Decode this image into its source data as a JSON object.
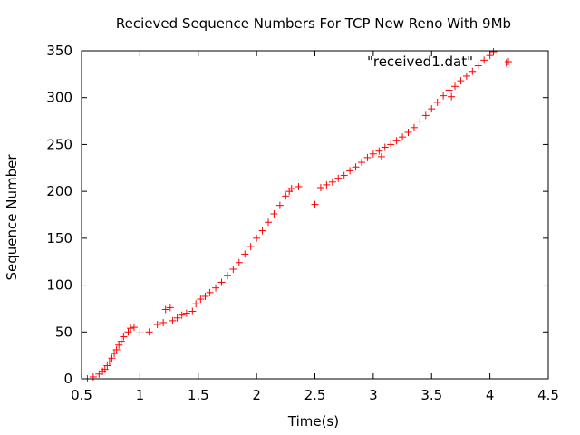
{
  "chart_data": {
    "type": "scatter",
    "title": "Recieved Sequence Numbers For TCP New Reno With 9Mb",
    "xlabel": "Time(s)",
    "ylabel": "Sequence Number",
    "xlim": [
      0.5,
      4.5
    ],
    "ylim": [
      0,
      350
    ],
    "xticks": [
      0.5,
      1,
      1.5,
      2,
      2.5,
      3,
      3.5,
      4,
      4.5
    ],
    "xtick_labels": [
      "0.5",
      "1",
      "1.5",
      "2",
      "2.5",
      "3",
      "3.5",
      "4",
      "4.5"
    ],
    "yticks": [
      0,
      50,
      100,
      150,
      200,
      250,
      300,
      350
    ],
    "ytick_labels": [
      "0",
      "50",
      "100",
      "150",
      "200",
      "250",
      "300",
      "350"
    ],
    "marker": "+",
    "marker_color": "#ff0000",
    "legend": {
      "position": "top-right"
    },
    "series": [
      {
        "name": "\"received1.dat\"",
        "points": [
          [
            0.55,
            0
          ],
          [
            0.6,
            2
          ],
          [
            0.65,
            5
          ],
          [
            0.68,
            8
          ],
          [
            0.7,
            10
          ],
          [
            0.72,
            14
          ],
          [
            0.74,
            18
          ],
          [
            0.76,
            22
          ],
          [
            0.78,
            27
          ],
          [
            0.8,
            31
          ],
          [
            0.82,
            36
          ],
          [
            0.84,
            40
          ],
          [
            0.86,
            45
          ],
          [
            0.9,
            50
          ],
          [
            0.92,
            54
          ],
          [
            0.95,
            55
          ],
          [
            1.0,
            49
          ],
          [
            1.08,
            50
          ],
          [
            1.15,
            58
          ],
          [
            1.2,
            60
          ],
          [
            1.22,
            74
          ],
          [
            1.26,
            76
          ],
          [
            1.28,
            62
          ],
          [
            1.32,
            65
          ],
          [
            1.36,
            68
          ],
          [
            1.4,
            70
          ],
          [
            1.45,
            72
          ],
          [
            1.48,
            80
          ],
          [
            1.52,
            85
          ],
          [
            1.56,
            88
          ],
          [
            1.6,
            92
          ],
          [
            1.65,
            97
          ],
          [
            1.7,
            103
          ],
          [
            1.75,
            110
          ],
          [
            1.8,
            117
          ],
          [
            1.85,
            124
          ],
          [
            1.9,
            133
          ],
          [
            1.95,
            141
          ],
          [
            2.0,
            150
          ],
          [
            2.05,
            158
          ],
          [
            2.1,
            167
          ],
          [
            2.15,
            176
          ],
          [
            2.2,
            185
          ],
          [
            2.25,
            195
          ],
          [
            2.28,
            200
          ],
          [
            2.3,
            203
          ],
          [
            2.36,
            205
          ],
          [
            2.5,
            186
          ],
          [
            2.55,
            204
          ],
          [
            2.6,
            207
          ],
          [
            2.65,
            210
          ],
          [
            2.7,
            214
          ],
          [
            2.75,
            217
          ],
          [
            2.8,
            222
          ],
          [
            2.85,
            226
          ],
          [
            2.9,
            231
          ],
          [
            2.95,
            236
          ],
          [
            3.0,
            240
          ],
          [
            3.05,
            243
          ],
          [
            3.07,
            237
          ],
          [
            3.1,
            247
          ],
          [
            3.15,
            250
          ],
          [
            3.2,
            254
          ],
          [
            3.25,
            258
          ],
          [
            3.3,
            263
          ],
          [
            3.35,
            268
          ],
          [
            3.4,
            275
          ],
          [
            3.45,
            281
          ],
          [
            3.5,
            288
          ],
          [
            3.55,
            295
          ],
          [
            3.6,
            302
          ],
          [
            3.65,
            308
          ],
          [
            3.67,
            301
          ],
          [
            3.7,
            312
          ],
          [
            3.75,
            318
          ],
          [
            3.8,
            323
          ],
          [
            3.85,
            328
          ],
          [
            3.9,
            334
          ],
          [
            3.95,
            340
          ],
          [
            4.0,
            345
          ],
          [
            4.03,
            349
          ],
          [
            4.14,
            337
          ]
        ]
      }
    ]
  }
}
